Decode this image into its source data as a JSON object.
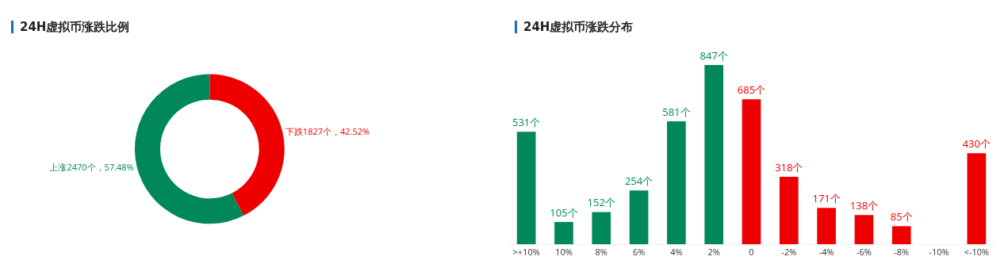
{
  "chart_data": [
    {
      "type": "donut",
      "title": "24H虚拟币涨跌比例",
      "categories": [
        "下跌1827个，42.52%",
        "上涨2470个，57.48%"
      ],
      "values": [
        1827,
        2470
      ],
      "colors": [
        "#ee0000",
        "#00875a"
      ],
      "legend": false
    },
    {
      "type": "bar",
      "title": "24H虚拟币涨跌分布",
      "categories": [
        ">+10%",
        "10%",
        "8%",
        "6%",
        "4%",
        "2%",
        "0",
        "-2%",
        "-4%",
        "-6%",
        "-8%",
        "-10%",
        "<-10%"
      ],
      "values": [
        531,
        105,
        152,
        254,
        581,
        847,
        685,
        318,
        171,
        138,
        85,
        null,
        430
      ],
      "colors": [
        "#00875a",
        "#00875a",
        "#00875a",
        "#00875a",
        "#00875a",
        "#00875a",
        "#ee0000",
        "#ee0000",
        "#ee0000",
        "#ee0000",
        "#ee0000",
        "#ee0000",
        "#ee0000"
      ],
      "value_labels": [
        "531个",
        "105个",
        "152个",
        "254个",
        "581个",
        "847个",
        "685个",
        "318个",
        "171个",
        "138个",
        "85个",
        null,
        "430个"
      ],
      "legend": false,
      "grid": false
    }
  ]
}
